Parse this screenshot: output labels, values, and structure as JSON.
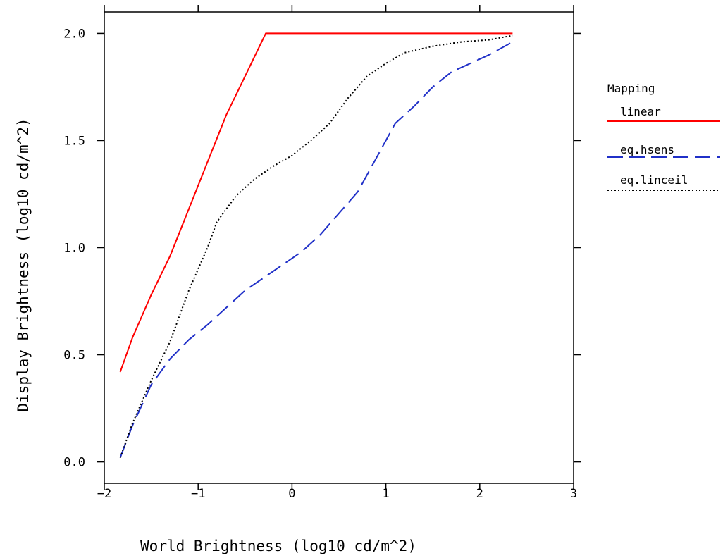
{
  "chart_data": {
    "type": "line",
    "xlabel": "World Brightness (log10 cd/m^2)",
    "ylabel": "Display Brightness (log10 cd/m^2)",
    "xlim": [
      -2,
      3
    ],
    "ylim": [
      -0.1,
      2.1
    ],
    "x_ticks": [
      -2,
      -1,
      0,
      1,
      2,
      3
    ],
    "x_tick_labels": [
      "−2",
      "−1",
      "0",
      "1",
      "2",
      "3"
    ],
    "y_ticks": [
      0.0,
      0.5,
      1.0,
      1.5,
      2.0
    ],
    "y_tick_labels": [
      "0.0",
      "0.5",
      "1.0",
      "1.5",
      "2.0"
    ],
    "grid": false,
    "legend": {
      "title": "Mapping",
      "position": "right"
    },
    "series": [
      {
        "name": "linear",
        "color": "#ff0000",
        "dash": "solid",
        "points": [
          [
            -1.83,
            0.42
          ],
          [
            -1.7,
            0.58
          ],
          [
            -1.5,
            0.78
          ],
          [
            -1.3,
            0.96
          ],
          [
            -1.1,
            1.18
          ],
          [
            -0.9,
            1.4
          ],
          [
            -0.7,
            1.62
          ],
          [
            -0.5,
            1.8
          ],
          [
            -0.28,
            2.0
          ],
          [
            2.35,
            2.0
          ]
        ]
      },
      {
        "name": "eq.hsens",
        "color": "#2030c8",
        "dash": "dashed",
        "points": [
          [
            -1.83,
            0.02
          ],
          [
            -1.7,
            0.17
          ],
          [
            -1.5,
            0.36
          ],
          [
            -1.3,
            0.48
          ],
          [
            -1.1,
            0.57
          ],
          [
            -0.9,
            0.64
          ],
          [
            -0.7,
            0.72
          ],
          [
            -0.5,
            0.8
          ],
          [
            -0.3,
            0.86
          ],
          [
            -0.1,
            0.92
          ],
          [
            0.1,
            0.98
          ],
          [
            0.3,
            1.06
          ],
          [
            0.5,
            1.16
          ],
          [
            0.7,
            1.26
          ],
          [
            0.9,
            1.42
          ],
          [
            1.1,
            1.58
          ],
          [
            1.3,
            1.66
          ],
          [
            1.5,
            1.75
          ],
          [
            1.7,
            1.82
          ],
          [
            1.9,
            1.86
          ],
          [
            2.1,
            1.9
          ],
          [
            2.35,
            1.96
          ]
        ]
      },
      {
        "name": "eq.linceil",
        "color": "#000000",
        "dash": "dotted",
        "points": [
          [
            -1.83,
            0.02
          ],
          [
            -1.7,
            0.18
          ],
          [
            -1.5,
            0.38
          ],
          [
            -1.3,
            0.56
          ],
          [
            -1.1,
            0.8
          ],
          [
            -0.9,
            1.0
          ],
          [
            -0.8,
            1.12
          ],
          [
            -0.6,
            1.24
          ],
          [
            -0.4,
            1.32
          ],
          [
            -0.2,
            1.38
          ],
          [
            0.0,
            1.43
          ],
          [
            0.2,
            1.5
          ],
          [
            0.4,
            1.58
          ],
          [
            0.6,
            1.7
          ],
          [
            0.8,
            1.8
          ],
          [
            1.0,
            1.86
          ],
          [
            1.2,
            1.91
          ],
          [
            1.5,
            1.94
          ],
          [
            1.8,
            1.96
          ],
          [
            2.1,
            1.97
          ],
          [
            2.35,
            1.99
          ]
        ]
      }
    ]
  }
}
